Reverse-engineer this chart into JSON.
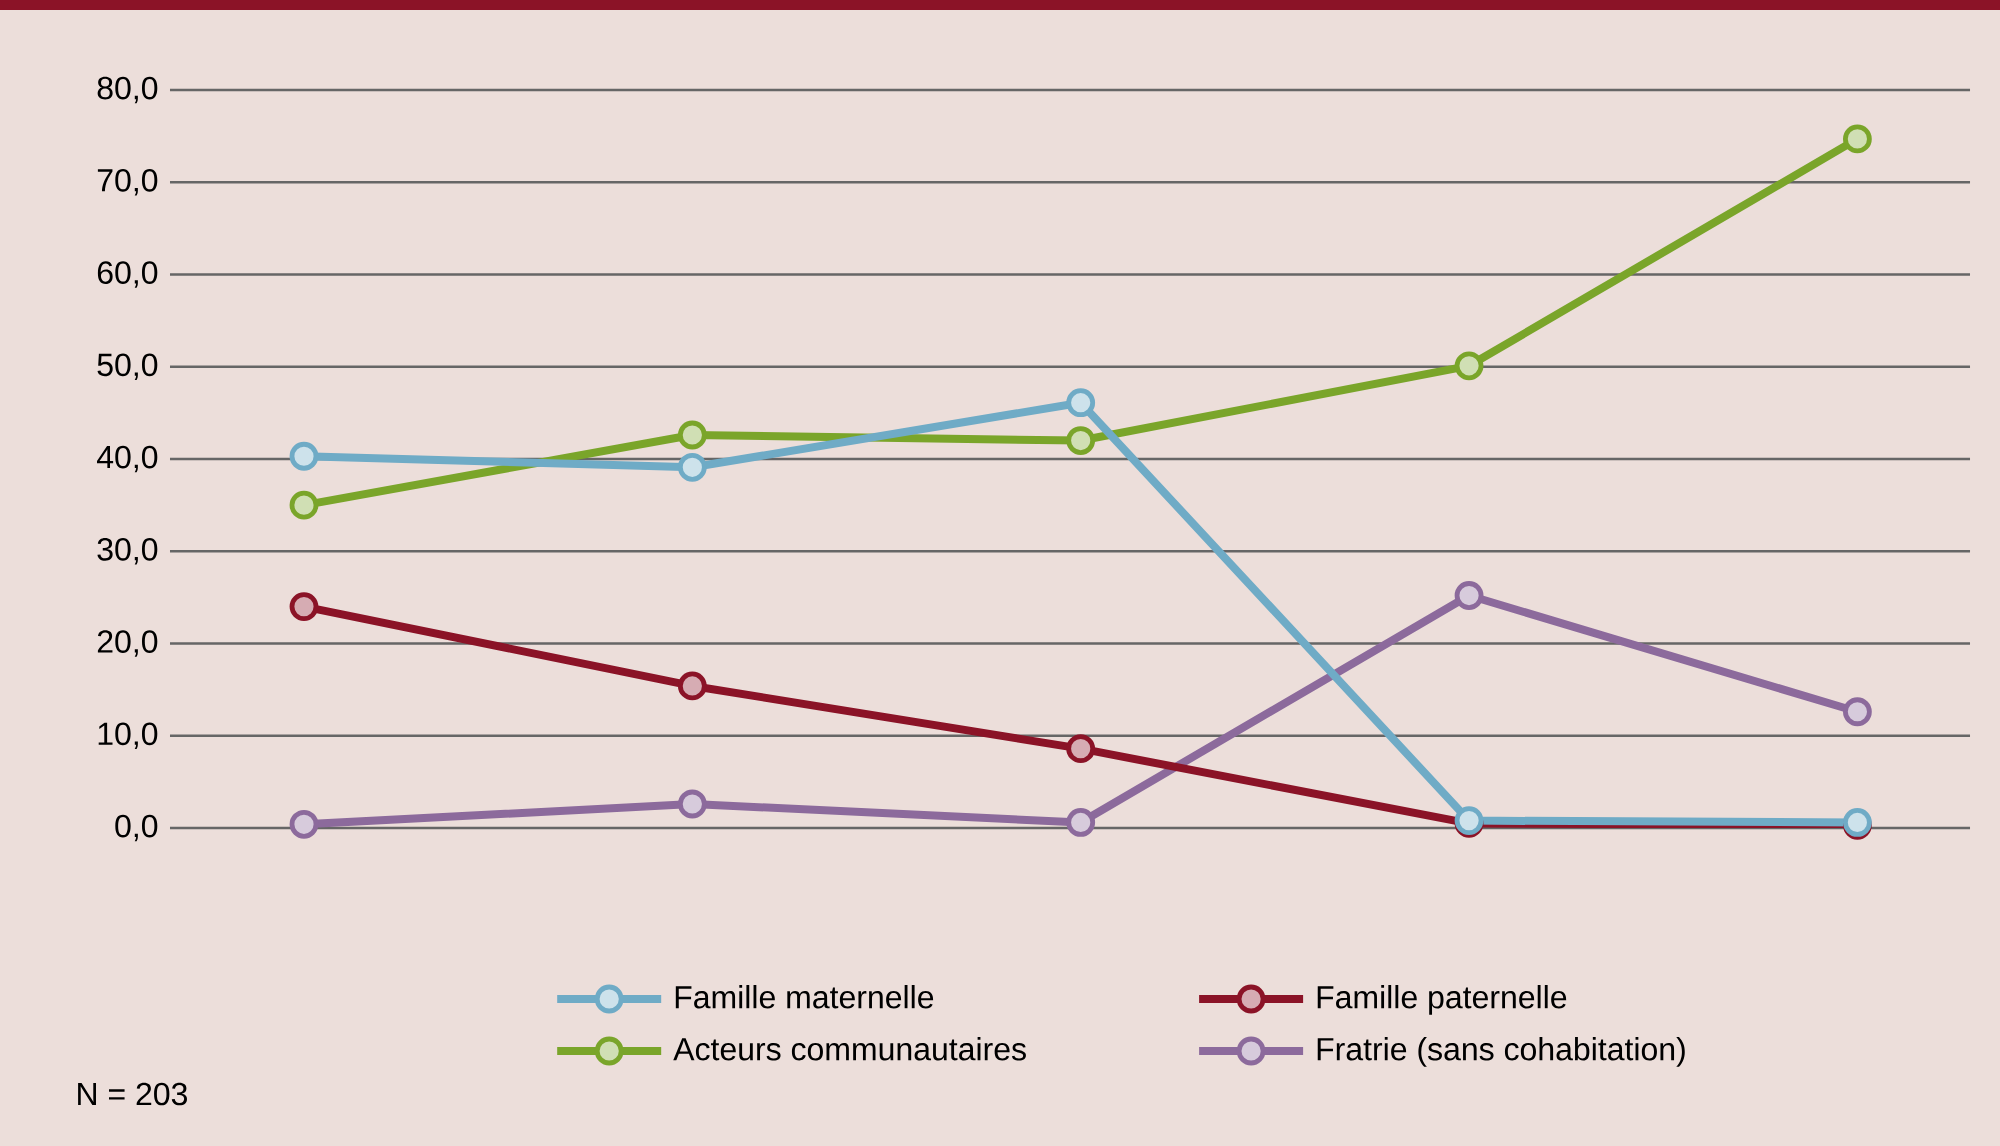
{
  "chart_data": {
    "type": "line",
    "categories": [
      null,
      null,
      null,
      null,
      null
    ],
    "series": [
      {
        "name": "Famille maternelle",
        "color": "#6fabc6",
        "values": [
          40.3,
          39.1,
          46.1,
          0.8,
          0.6
        ]
      },
      {
        "name": "Famille paternelle",
        "color": "#8b1327",
        "values": [
          24.0,
          15.4,
          8.6,
          0.5,
          0.3
        ]
      },
      {
        "name": "Acteurs communautaires",
        "color": "#7aa52a",
        "values": [
          35.0,
          42.6,
          42.0,
          50.1,
          74.7
        ]
      },
      {
        "name": "Fratrie (sans cohabitation)",
        "color": "#8c6a9c",
        "values": [
          0.4,
          2.6,
          0.6,
          25.2,
          12.6
        ]
      }
    ],
    "ylim": [
      0,
      80
    ],
    "yticks": [
      {
        "value": 0,
        "label": "0,0"
      },
      {
        "value": 10,
        "label": "10,0"
      },
      {
        "value": 20,
        "label": "20,0"
      },
      {
        "value": 30,
        "label": "30,0"
      },
      {
        "value": 40,
        "label": "40,0"
      },
      {
        "value": 50,
        "label": "50,0"
      },
      {
        "value": 60,
        "label": "60,0"
      },
      {
        "value": 70,
        "label": "70,0"
      },
      {
        "value": 80,
        "label": "80,0"
      }
    ],
    "grid": "y",
    "legend": "bottom",
    "marker": "circle",
    "line_style": "solid",
    "annotations": [
      "N = 203"
    ]
  }
}
